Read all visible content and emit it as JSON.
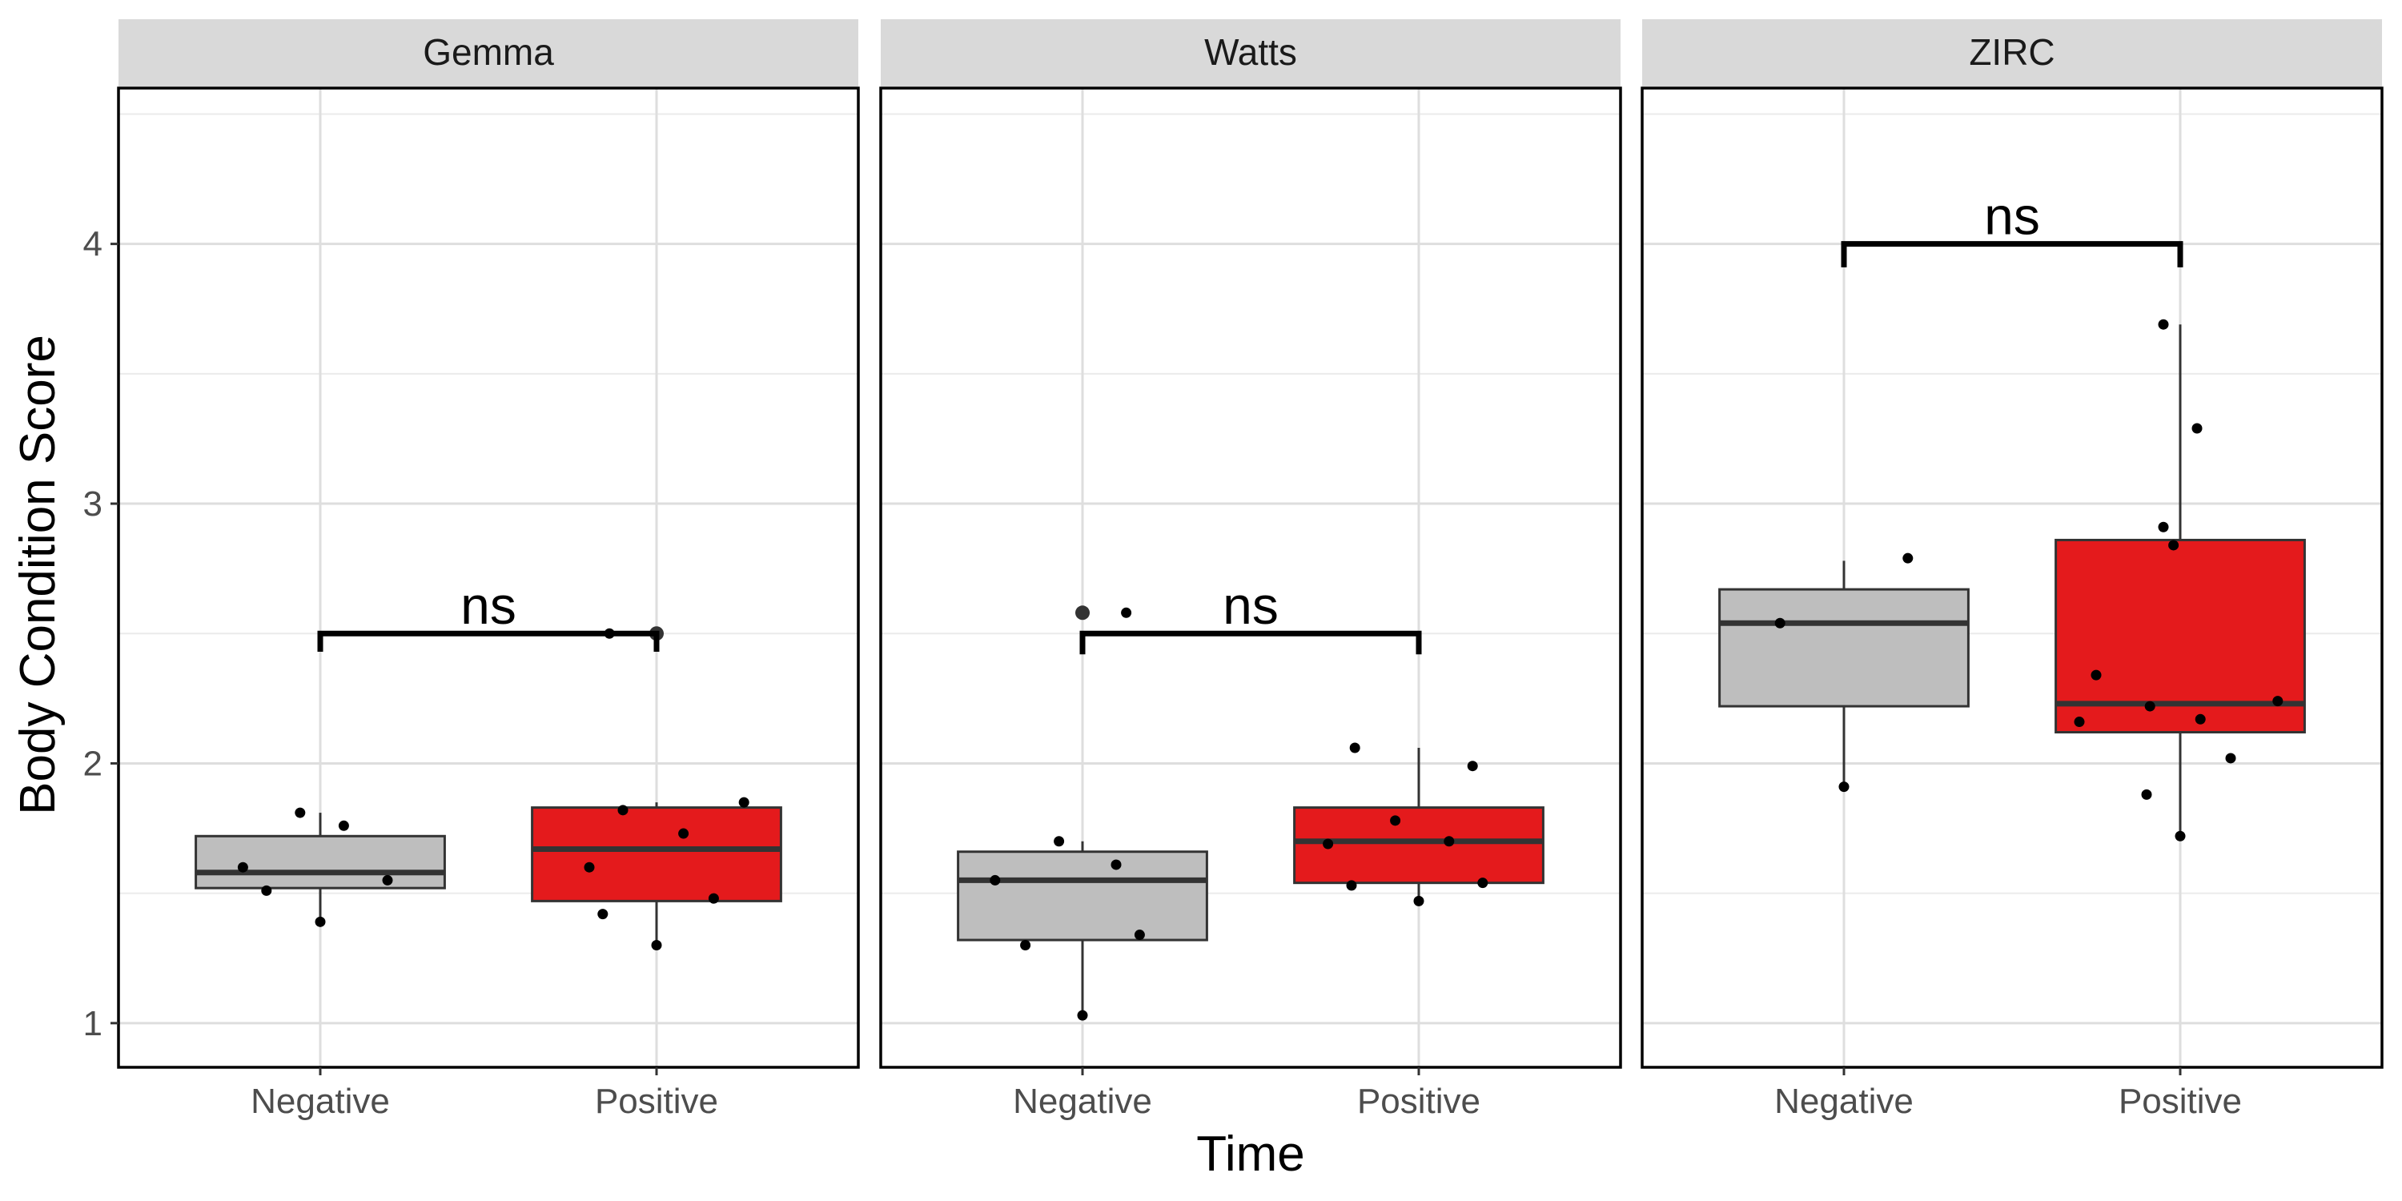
{
  "chart_data": {
    "type": "boxplot",
    "xlabel": "Time",
    "ylabel": "Body Condition Score",
    "ylim": [
      0.83,
      4.6
    ],
    "yticks": [
      1,
      2,
      3,
      4
    ],
    "categories": [
      "Negative",
      "Positive"
    ],
    "colors": {
      "Negative": "#bebebe",
      "Positive": "#e41a1c"
    },
    "grid": true,
    "panels": [
      {
        "name": "Gemma",
        "boxes": [
          {
            "group": "Negative",
            "lower": 1.39,
            "q1": 1.52,
            "median": 1.58,
            "q3": 1.72,
            "upper": 1.81,
            "outliers": []
          },
          {
            "group": "Positive",
            "lower": 1.3,
            "q1": 1.47,
            "median": 1.67,
            "q3": 1.83,
            "upper": 1.85,
            "outliers": [
              2.5
            ]
          }
        ],
        "points": [
          {
            "group": "Negative",
            "offset": -0.23,
            "y": 1.6
          },
          {
            "group": "Negative",
            "offset": -0.16,
            "y": 1.51
          },
          {
            "group": "Negative",
            "offset": -0.06,
            "y": 1.81
          },
          {
            "group": "Negative",
            "offset": 0.0,
            "y": 1.39
          },
          {
            "group": "Negative",
            "offset": 0.07,
            "y": 1.76
          },
          {
            "group": "Negative",
            "offset": 0.2,
            "y": 1.55
          },
          {
            "group": "Positive",
            "offset": -0.2,
            "y": 1.6
          },
          {
            "group": "Positive",
            "offset": -0.16,
            "y": 1.42
          },
          {
            "group": "Positive",
            "offset": -0.14,
            "y": 2.5
          },
          {
            "group": "Positive",
            "offset": -0.1,
            "y": 1.82
          },
          {
            "group": "Positive",
            "offset": 0.0,
            "y": 1.3
          },
          {
            "group": "Positive",
            "offset": 0.08,
            "y": 1.73
          },
          {
            "group": "Positive",
            "offset": 0.17,
            "y": 1.48
          },
          {
            "group": "Positive",
            "offset": 0.26,
            "y": 1.85
          }
        ],
        "comparison": {
          "y": 2.5,
          "tip": 0.07,
          "label": "ns"
        }
      },
      {
        "name": "Watts",
        "boxes": [
          {
            "group": "Negative",
            "lower": 1.03,
            "q1": 1.32,
            "median": 1.55,
            "q3": 1.66,
            "upper": 1.7,
            "outliers": [
              2.58
            ]
          },
          {
            "group": "Positive",
            "lower": 1.47,
            "q1": 1.54,
            "median": 1.7,
            "q3": 1.83,
            "upper": 2.06,
            "outliers": []
          }
        ],
        "points": [
          {
            "group": "Negative",
            "offset": -0.26,
            "y": 1.55
          },
          {
            "group": "Negative",
            "offset": -0.17,
            "y": 1.3
          },
          {
            "group": "Negative",
            "offset": -0.07,
            "y": 1.7
          },
          {
            "group": "Negative",
            "offset": 0.0,
            "y": 1.03
          },
          {
            "group": "Negative",
            "offset": 0.1,
            "y": 1.61
          },
          {
            "group": "Negative",
            "offset": 0.13,
            "y": 2.58
          },
          {
            "group": "Negative",
            "offset": 0.17,
            "y": 1.34
          },
          {
            "group": "Positive",
            "offset": -0.27,
            "y": 1.69
          },
          {
            "group": "Positive",
            "offset": -0.2,
            "y": 1.53
          },
          {
            "group": "Positive",
            "offset": -0.19,
            "y": 2.06
          },
          {
            "group": "Positive",
            "offset": -0.07,
            "y": 1.78
          },
          {
            "group": "Positive",
            "offset": 0.0,
            "y": 1.47
          },
          {
            "group": "Positive",
            "offset": 0.09,
            "y": 1.7
          },
          {
            "group": "Positive",
            "offset": 0.16,
            "y": 1.99
          },
          {
            "group": "Positive",
            "offset": 0.19,
            "y": 1.54
          }
        ],
        "comparison": {
          "y": 2.5,
          "tip": 0.08,
          "label": "ns"
        }
      },
      {
        "name": "ZIRC",
        "boxes": [
          {
            "group": "Negative",
            "lower": 1.91,
            "q1": 2.22,
            "median": 2.54,
            "q3": 2.67,
            "upper": 2.78,
            "outliers": []
          },
          {
            "group": "Positive",
            "lower": 1.72,
            "q1": 2.12,
            "median": 2.23,
            "q3": 2.86,
            "upper": 3.69,
            "outliers": []
          }
        ],
        "points": [
          {
            "group": "Negative",
            "offset": -0.19,
            "y": 2.54
          },
          {
            "group": "Negative",
            "offset": 0.0,
            "y": 1.91
          },
          {
            "group": "Negative",
            "offset": 0.19,
            "y": 2.79
          },
          {
            "group": "Positive",
            "offset": -0.3,
            "y": 2.16
          },
          {
            "group": "Positive",
            "offset": -0.25,
            "y": 2.34
          },
          {
            "group": "Positive",
            "offset": -0.1,
            "y": 1.88
          },
          {
            "group": "Positive",
            "offset": -0.09,
            "y": 2.22
          },
          {
            "group": "Positive",
            "offset": -0.05,
            "y": 2.91
          },
          {
            "group": "Positive",
            "offset": -0.05,
            "y": 3.69
          },
          {
            "group": "Positive",
            "offset": -0.02,
            "y": 2.84
          },
          {
            "group": "Positive",
            "offset": 0.0,
            "y": 1.72
          },
          {
            "group": "Positive",
            "offset": 0.05,
            "y": 3.29
          },
          {
            "group": "Positive",
            "offset": 0.06,
            "y": 2.17
          },
          {
            "group": "Positive",
            "offset": 0.15,
            "y": 2.02
          },
          {
            "group": "Positive",
            "offset": 0.29,
            "y": 2.24
          }
        ],
        "comparison": {
          "y": 4.0,
          "tip": 0.09,
          "label": "ns"
        }
      }
    ]
  }
}
